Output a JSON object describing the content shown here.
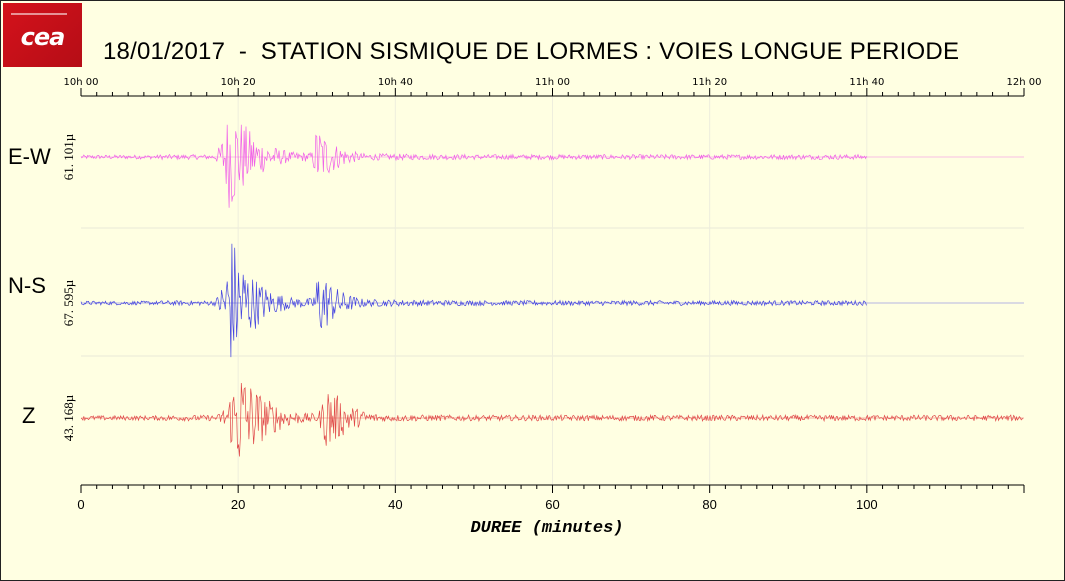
{
  "logo": {
    "text": "cea"
  },
  "title": "18/01/2017  -  STATION SISMIQUE DE LORMES : VOIES LONGUE PERIODE",
  "chart_data": {
    "type": "line",
    "time_ticks": [
      "10h 00",
      "10h 20",
      "10h 40",
      "11h 00",
      "11h 20",
      "11h 40",
      "12h 00"
    ],
    "xlabel": "DUREE  (minutes)",
    "xlim": [
      0,
      120
    ],
    "x_ticks": [
      0,
      20,
      40,
      60,
      80,
      100
    ],
    "channels": [
      {
        "name": "E-W",
        "scale": "61. 101µ",
        "color": "#f060e8",
        "events": [
          {
            "start": 16.5,
            "peak": 19.0,
            "end": 27.0,
            "amp": 0.95,
            "decay": 3.2
          },
          {
            "start": 29.0,
            "peak": 30.0,
            "end": 38.0,
            "amp": 0.55,
            "decay": 2.6
          }
        ],
        "noise": 0.04,
        "trace_end": 100
      },
      {
        "name": "N-S",
        "scale": "67. 595µ",
        "color": "#4444e0",
        "events": [
          {
            "start": 16.5,
            "peak": 19.2,
            "end": 27.0,
            "amp": 1.0,
            "decay": 3.0
          },
          {
            "start": 29.0,
            "peak": 30.2,
            "end": 38.0,
            "amp": 0.55,
            "decay": 2.6
          }
        ],
        "noise": 0.035,
        "trace_end": 100
      },
      {
        "name": "Z",
        "scale": "43. 168µ",
        "color": "#e04848",
        "events": [
          {
            "start": 16.5,
            "peak": 20.2,
            "end": 29.0,
            "amp": 0.95,
            "decay": 3.4
          },
          {
            "start": 29.5,
            "peak": 31.3,
            "end": 40.0,
            "amp": 0.62,
            "decay": 3.0
          }
        ],
        "noise": 0.05,
        "trace_end": 120
      }
    ]
  }
}
